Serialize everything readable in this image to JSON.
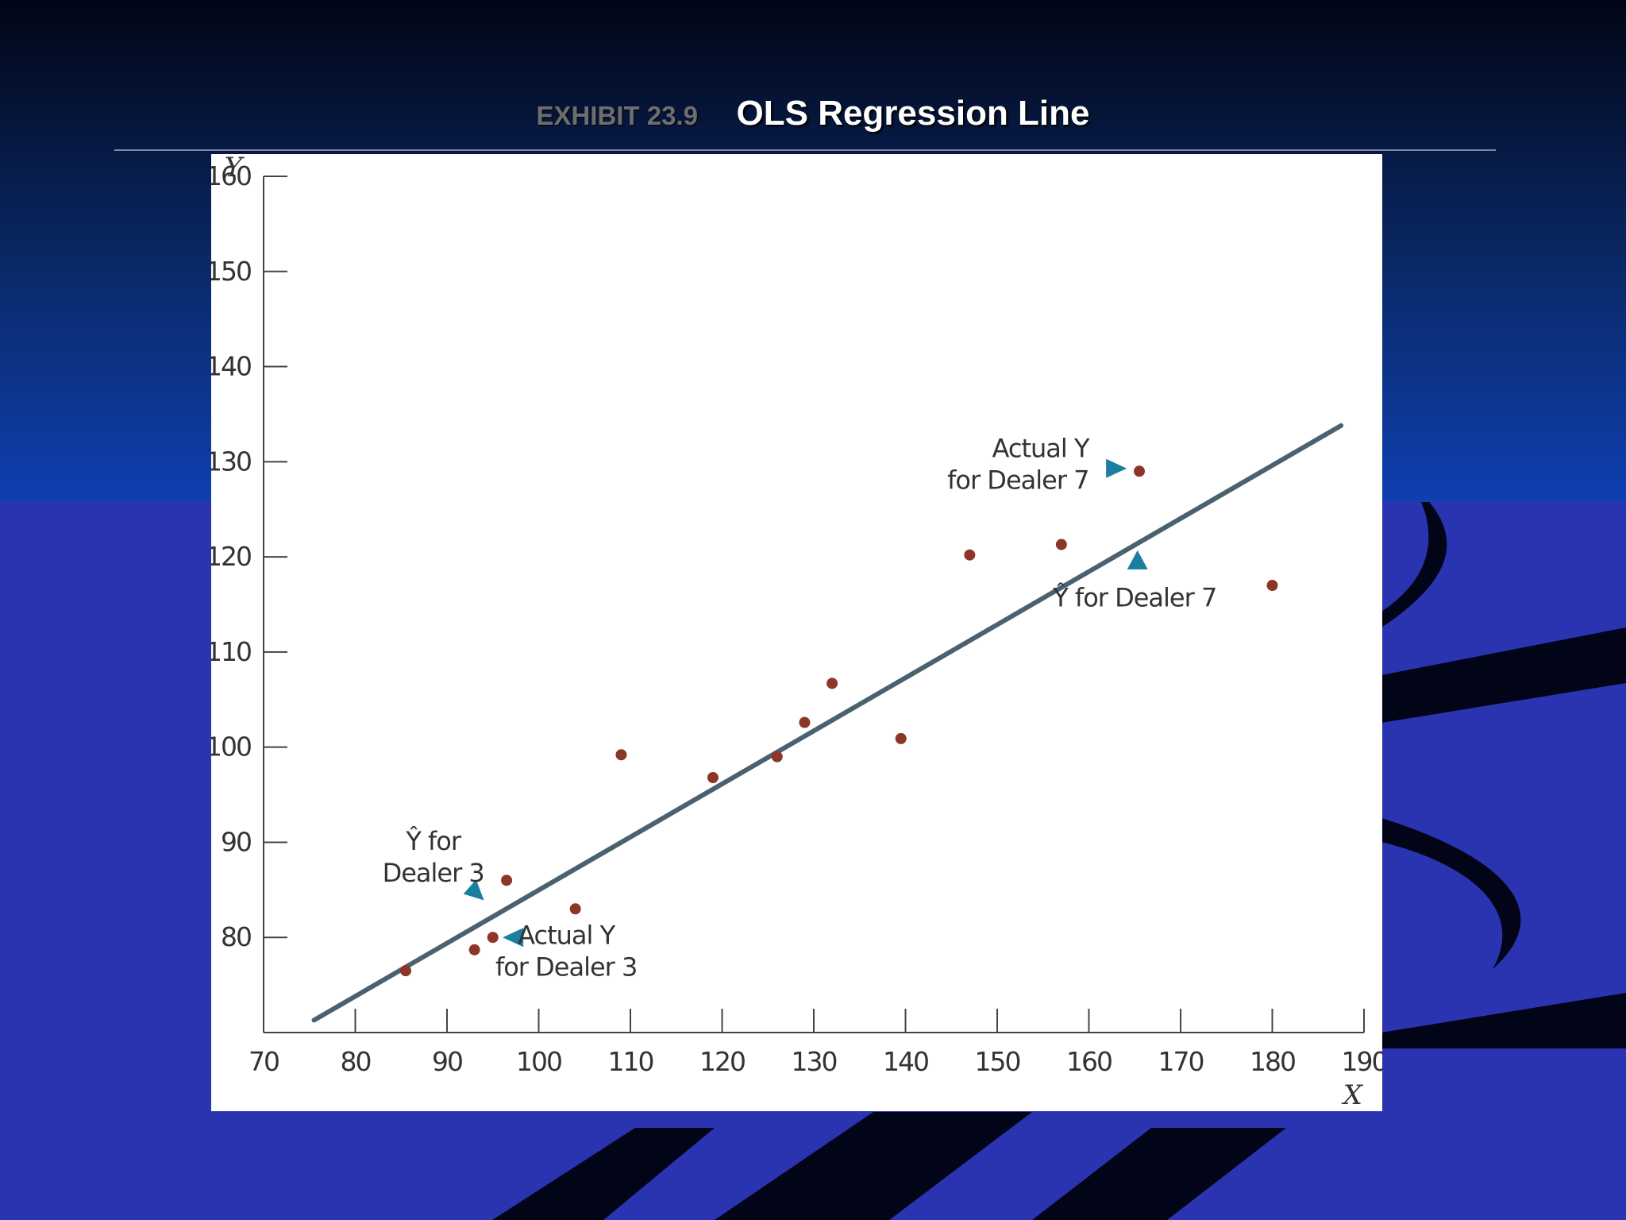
{
  "slide": {
    "exhibit_label": "EXHIBIT 23.9",
    "title": "OLS Regression Line",
    "colors": {
      "top_background": "#0a1a4a",
      "lower_background": "#2a34b0",
      "swoosh": "#020418",
      "panel": "#ffffff"
    }
  },
  "chart_data": {
    "type": "scatter",
    "xlabel": "X",
    "ylabel": "Y",
    "xlim": [
      70,
      190
    ],
    "ylim": [
      70,
      160
    ],
    "x_ticks": [
      70,
      80,
      90,
      100,
      110,
      120,
      130,
      140,
      150,
      160,
      170,
      180,
      190
    ],
    "y_ticks": [
      80,
      90,
      100,
      110,
      120,
      130,
      140,
      150,
      160
    ],
    "grid": false,
    "legend": "none",
    "point_color": "#8b3626",
    "line_color": "#4a6270",
    "marker_color": "#1a7ea0",
    "points": [
      {
        "x": 85.5,
        "y": 76.5
      },
      {
        "x": 93,
        "y": 78.7
      },
      {
        "x": 95,
        "y": 80
      },
      {
        "x": 96.5,
        "y": 86
      },
      {
        "x": 104,
        "y": 83
      },
      {
        "x": 109,
        "y": 99.2
      },
      {
        "x": 119,
        "y": 96.8
      },
      {
        "x": 126,
        "y": 99
      },
      {
        "x": 129,
        "y": 102.6
      },
      {
        "x": 132,
        "y": 106.7
      },
      {
        "x": 139.5,
        "y": 100.9
      },
      {
        "x": 147,
        "y": 120.2
      },
      {
        "x": 157,
        "y": 121.3
      },
      {
        "x": 165.5,
        "y": 129
      },
      {
        "x": 180,
        "y": 117
      }
    ],
    "regression_line": {
      "x1": 75.5,
      "y1": 71.3,
      "x2": 187.5,
      "y2": 133.8
    },
    "annotations": [
      {
        "lines": [
          "Actual Y",
          "for Dealer 7"
        ],
        "italic_word": "Y",
        "anchor_x": 163,
        "anchor_y": 129.3,
        "text_x": 160,
        "text_y": 130.5,
        "align": "end",
        "marker": "right"
      },
      {
        "lines": [
          "Ŷ for Dealer 7"
        ],
        "anchor_x": 165.3,
        "anchor_y": 119.6,
        "text_x": 165,
        "text_y": 114.8,
        "align": "middle",
        "marker": "up"
      },
      {
        "lines": [
          "Ŷ for",
          "Dealer 3"
        ],
        "anchor_x": 93,
        "anchor_y": 84.9,
        "text_x": 88.5,
        "text_y": 89.2,
        "align": "middle",
        "marker": "upleft"
      },
      {
        "lines": [
          "Actual Y",
          "for Dealer 3"
        ],
        "italic_word": "Y",
        "anchor_x": 97.2,
        "anchor_y": 80,
        "text_x": 103,
        "text_y": 79.3,
        "align": "middle",
        "marker": "left"
      }
    ]
  }
}
